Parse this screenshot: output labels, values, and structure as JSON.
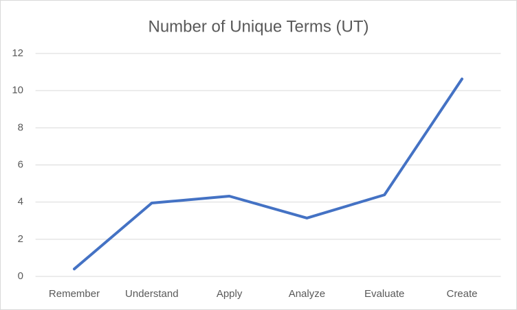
{
  "chart_data": {
    "type": "line",
    "title": "Number of Unique Terms (UT)",
    "categories": [
      "Remember",
      "Understand",
      "Apply",
      "Analyze",
      "Evaluate",
      "Create"
    ],
    "values": [
      0.4,
      3.95,
      4.32,
      3.14,
      4.39,
      10.63
    ],
    "color": "#4472c4",
    "ylim": [
      0,
      12
    ],
    "yticks": [
      0,
      2,
      4,
      6,
      8,
      10,
      12
    ],
    "grid": true
  }
}
